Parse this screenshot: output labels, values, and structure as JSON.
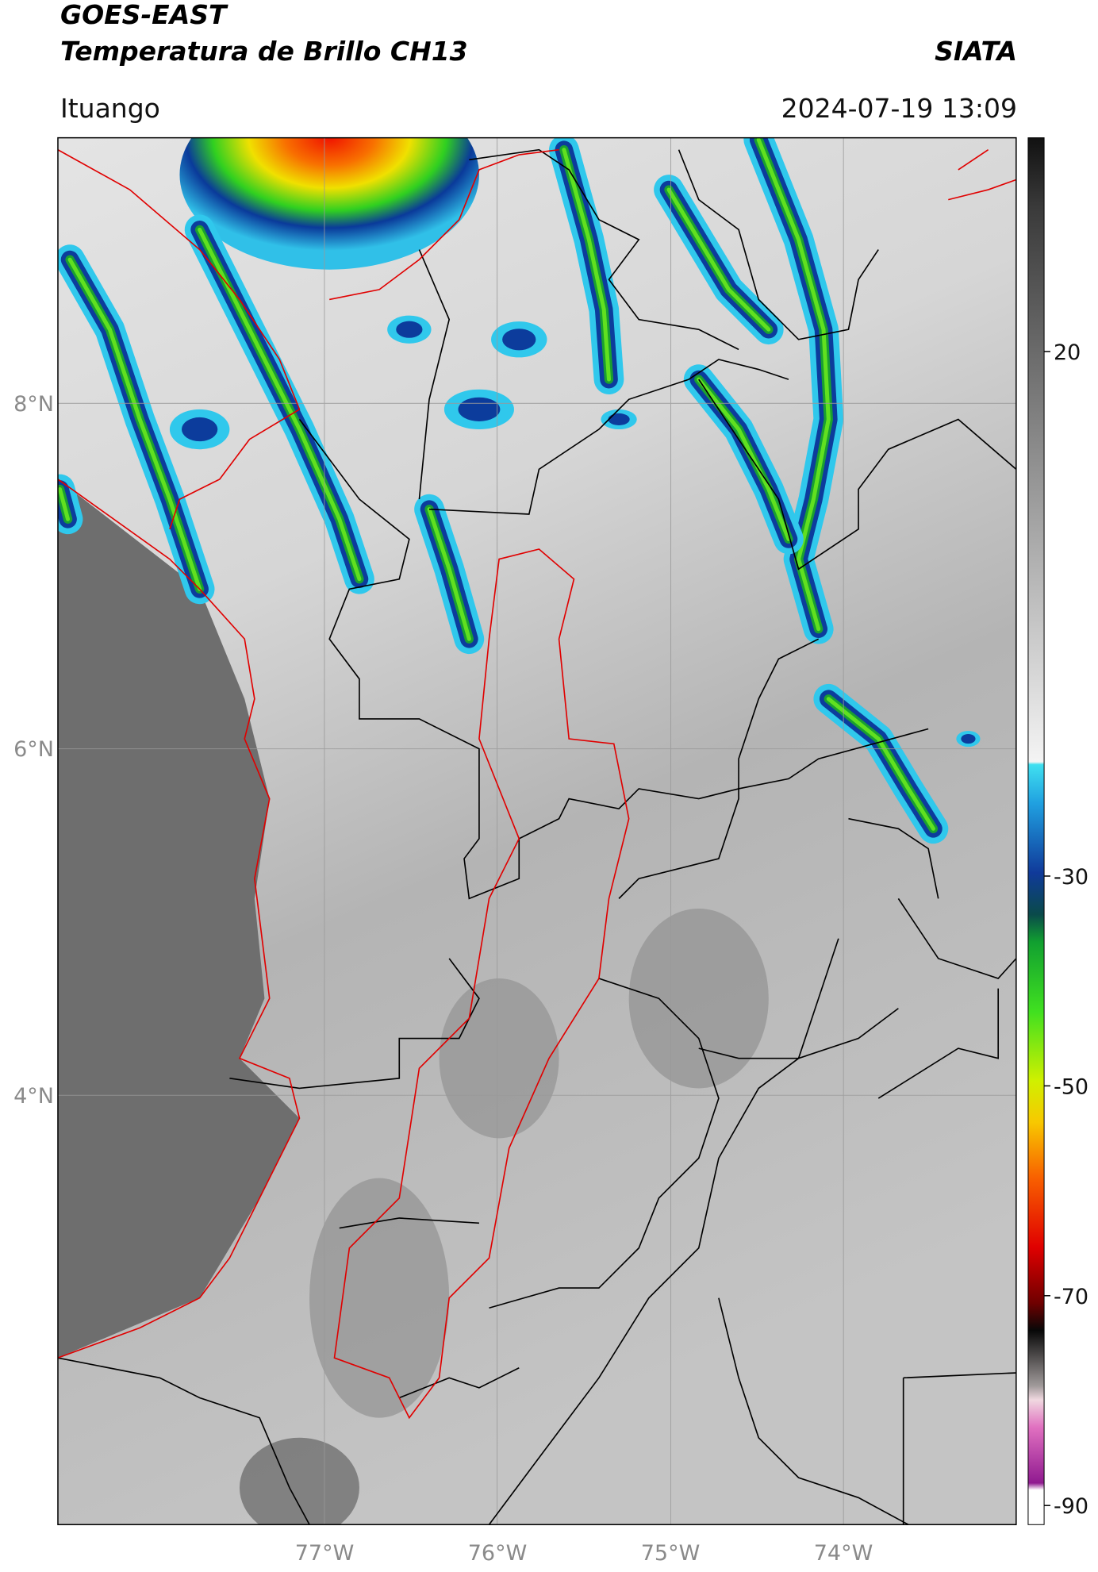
{
  "header": {
    "title": "GOES-EAST",
    "subtitle": "Temperatura de Brillo CH13",
    "source": "SIATA",
    "location": "Ituango",
    "datetime": "2024-07-19 13:09"
  },
  "map": {
    "lat_labels": [
      "8°N",
      "6°N",
      "4°N"
    ],
    "lon_labels": [
      "77°W",
      "76°W",
      "75°W",
      "74°W"
    ]
  },
  "colorbar": {
    "ticks": [
      20,
      -30,
      -50,
      -70,
      -90
    ]
  }
}
